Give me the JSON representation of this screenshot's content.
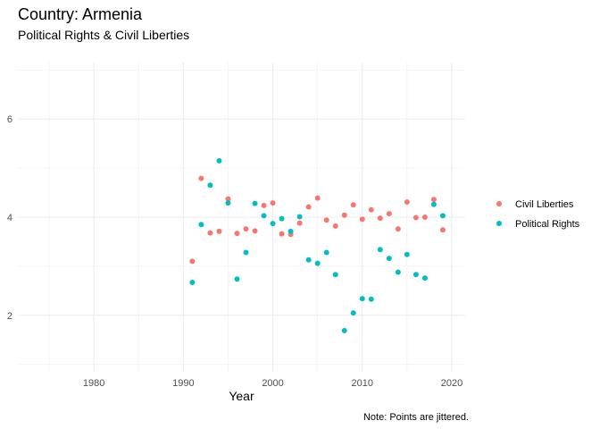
{
  "chart_data": {
    "type": "scatter",
    "title": "Country: Armenia",
    "subtitle": "Political Rights & Civil Liberties",
    "xlabel": "Year",
    "ylabel": "",
    "caption": "Note: Points are jittered.",
    "xlim": [
      1971.5,
      2021.5
    ],
    "ylim": [
      0.85,
      7.15
    ],
    "x_ticks": [
      1980,
      1990,
      2000,
      2010,
      2020
    ],
    "y_ticks": [
      2,
      4,
      6
    ],
    "grid": true,
    "legend_position": "right",
    "series": [
      {
        "name": "Civil Liberties",
        "color": "#F8766D",
        "points": [
          [
            1991,
            3.1
          ],
          [
            1992,
            4.79
          ],
          [
            1993,
            3.68
          ],
          [
            1994,
            3.71
          ],
          [
            1995,
            4.37
          ],
          [
            1996,
            3.67
          ],
          [
            1997,
            3.76
          ],
          [
            1998,
            3.72
          ],
          [
            1999,
            4.24
          ],
          [
            2000,
            4.29
          ],
          [
            2001,
            3.66
          ],
          [
            2002,
            3.65
          ],
          [
            2003,
            3.88
          ],
          [
            2004,
            4.21
          ],
          [
            2005,
            4.39
          ],
          [
            2006,
            3.94
          ],
          [
            2007,
            3.82
          ],
          [
            2008,
            4.04
          ],
          [
            2009,
            4.25
          ],
          [
            2010,
            3.96
          ],
          [
            2011,
            4.15
          ],
          [
            2012,
            3.98
          ],
          [
            2013,
            4.07
          ],
          [
            2014,
            3.76
          ],
          [
            2015,
            4.31
          ],
          [
            2016,
            3.99
          ],
          [
            2017,
            4.0
          ],
          [
            2018,
            4.36
          ],
          [
            2019,
            3.74
          ]
        ]
      },
      {
        "name": "Political Rights",
        "color": "#00BFC4",
        "points": [
          [
            1991,
            2.67
          ],
          [
            1992,
            3.85
          ],
          [
            1993,
            4.65
          ],
          [
            1994,
            5.15
          ],
          [
            1995,
            4.29
          ],
          [
            1996,
            2.74
          ],
          [
            1997,
            3.28
          ],
          [
            1998,
            4.28
          ],
          [
            1999,
            4.03
          ],
          [
            2000,
            3.87
          ],
          [
            2001,
            3.97
          ],
          [
            2002,
            3.71
          ],
          [
            2003,
            4.01
          ],
          [
            2004,
            3.13
          ],
          [
            2005,
            3.06
          ],
          [
            2006,
            3.28
          ],
          [
            2007,
            2.83
          ],
          [
            2008,
            1.69
          ],
          [
            2009,
            2.05
          ],
          [
            2010,
            2.34
          ],
          [
            2011,
            2.33
          ],
          [
            2012,
            3.34
          ],
          [
            2013,
            3.16
          ],
          [
            2014,
            2.88
          ],
          [
            2015,
            3.24
          ],
          [
            2016,
            2.83
          ],
          [
            2017,
            2.76
          ],
          [
            2018,
            4.26
          ],
          [
            2019,
            4.03
          ]
        ]
      }
    ]
  }
}
